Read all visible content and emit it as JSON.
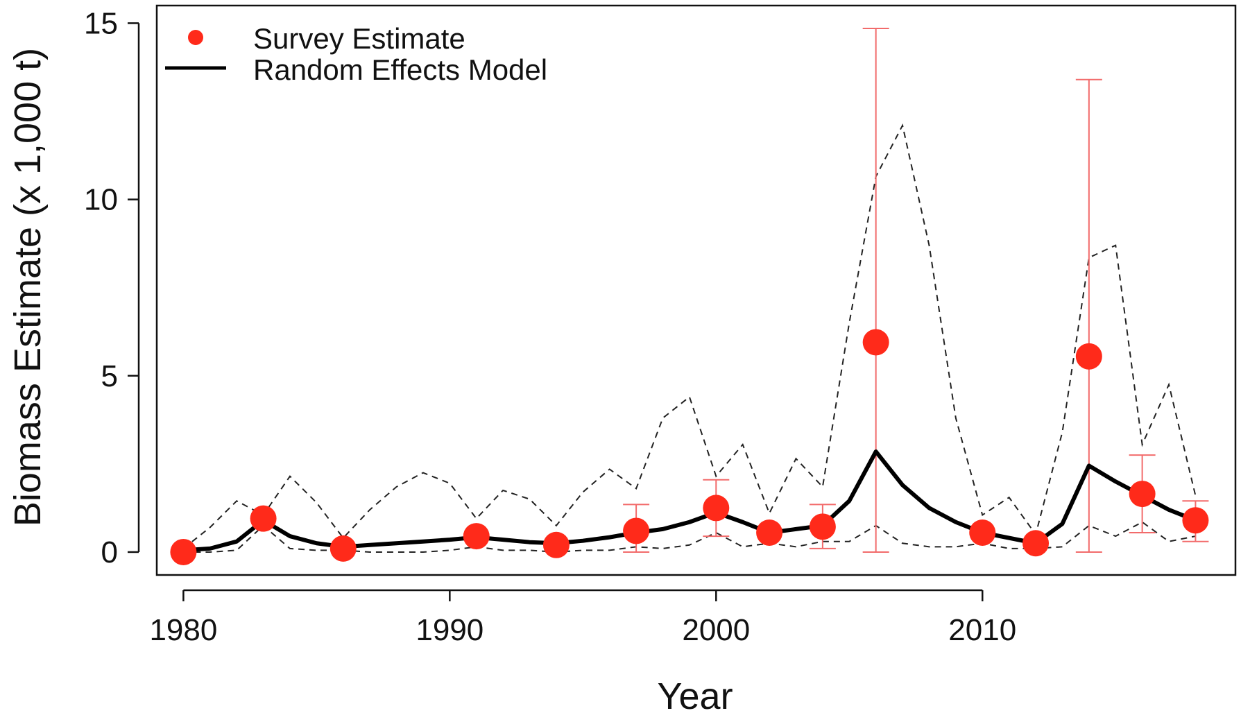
{
  "chart_data": {
    "type": "line",
    "title": "",
    "xlabel": "Year",
    "ylabel": "Biomass Estimate (x 1,000 t)",
    "xlim": [
      1979,
      2019.5
    ],
    "ylim": [
      -0.65,
      15.5
    ],
    "x_ticks": [
      1980,
      1990,
      2000,
      2010
    ],
    "y_ticks": [
      0,
      5,
      10,
      15
    ],
    "grid": false,
    "legend": {
      "position": "top-left",
      "entries": [
        {
          "label": "Survey Estimate",
          "symbol": "point",
          "color": "#ff2a1a"
        },
        {
          "label": "Random Effects Model",
          "symbol": "line",
          "color": "#000000"
        }
      ]
    },
    "colors": {
      "survey": "#ff2a1a",
      "error_bar": "#f26b6b",
      "model": "#000000",
      "interval": "#222222",
      "axis": "#111111"
    },
    "series": [
      {
        "name": "Survey Estimate",
        "kind": "points_with_error_bars",
        "points": [
          {
            "x": 1980,
            "y": 0.0,
            "lower": 0.0,
            "upper": 0.0
          },
          {
            "x": 1983,
            "y": 0.95,
            "lower": 0.95,
            "upper": 0.95
          },
          {
            "x": 1986,
            "y": 0.1,
            "lower": 0.1,
            "upper": 0.1
          },
          {
            "x": 1991,
            "y": 0.45,
            "lower": 0.45,
            "upper": 0.45
          },
          {
            "x": 1994,
            "y": 0.2,
            "lower": 0.2,
            "upper": 0.2
          },
          {
            "x": 1997,
            "y": 0.6,
            "lower": 0.0,
            "upper": 1.35
          },
          {
            "x": 2000,
            "y": 1.25,
            "lower": 0.45,
            "upper": 2.05
          },
          {
            "x": 2002,
            "y": 0.55,
            "lower": 0.55,
            "upper": 0.55
          },
          {
            "x": 2004,
            "y": 0.72,
            "lower": 0.1,
            "upper": 1.35
          },
          {
            "x": 2006,
            "y": 5.95,
            "lower": 0.0,
            "upper": 14.85
          },
          {
            "x": 2010,
            "y": 0.55,
            "lower": 0.55,
            "upper": 0.55
          },
          {
            "x": 2012,
            "y": 0.25,
            "lower": 0.25,
            "upper": 0.25
          },
          {
            "x": 2014,
            "y": 5.55,
            "lower": 0.0,
            "upper": 13.4
          },
          {
            "x": 2016,
            "y": 1.65,
            "lower": 0.55,
            "upper": 2.75
          },
          {
            "x": 2018,
            "y": 0.9,
            "lower": 0.3,
            "upper": 1.45
          }
        ]
      },
      {
        "name": "Random Effects Model",
        "kind": "line",
        "x": [
          1980,
          1981,
          1982,
          1983,
          1984,
          1985,
          1986,
          1987,
          1988,
          1989,
          1990,
          1991,
          1992,
          1993,
          1994,
          1995,
          1996,
          1997,
          1998,
          1999,
          2000,
          2001,
          2002,
          2003,
          2004,
          2005,
          2006,
          2007,
          2008,
          2009,
          2010,
          2011,
          2012,
          2013,
          2014,
          2015,
          2016,
          2017,
          2018
        ],
        "y": [
          0.05,
          0.1,
          0.3,
          0.9,
          0.45,
          0.25,
          0.15,
          0.2,
          0.25,
          0.3,
          0.35,
          0.42,
          0.35,
          0.28,
          0.25,
          0.32,
          0.42,
          0.55,
          0.65,
          0.85,
          1.12,
          0.85,
          0.55,
          0.65,
          0.75,
          1.45,
          2.85,
          1.9,
          1.25,
          0.85,
          0.55,
          0.4,
          0.25,
          0.8,
          2.45,
          2.0,
          1.6,
          1.2,
          0.9
        ]
      },
      {
        "kind": "interval_upper",
        "x": [
          1980,
          1981,
          1982,
          1983,
          1984,
          1985,
          1986,
          1987,
          1988,
          1989,
          1990,
          1991,
          1992,
          1993,
          1994,
          1995,
          1996,
          1997,
          1998,
          1999,
          2000,
          2001,
          2002,
          2003,
          2004,
          2005,
          2006,
          2007,
          2008,
          2009,
          2010,
          2011,
          2012,
          2013,
          2014,
          2015,
          2016,
          2017,
          2018
        ],
        "y": [
          0.1,
          0.7,
          1.45,
          1.05,
          2.15,
          1.4,
          0.4,
          1.2,
          1.85,
          2.25,
          1.95,
          0.95,
          1.75,
          1.5,
          0.75,
          1.7,
          2.35,
          1.8,
          3.8,
          4.4,
          2.15,
          3.05,
          1.1,
          2.65,
          1.85,
          6.5,
          10.65,
          12.1,
          8.7,
          3.8,
          1.05,
          1.55,
          0.5,
          3.4,
          8.35,
          8.7,
          3.05,
          4.75,
          1.6
        ]
      },
      {
        "kind": "interval_lower",
        "x": [
          1980,
          1981,
          1982,
          1983,
          1984,
          1985,
          1986,
          1987,
          1988,
          1989,
          1990,
          1991,
          1992,
          1993,
          1994,
          1995,
          1996,
          1997,
          1998,
          1999,
          2000,
          2001,
          2002,
          2003,
          2004,
          2005,
          2006,
          2007,
          2008,
          2009,
          2010,
          2011,
          2012,
          2013,
          2014,
          2015,
          2016,
          2017,
          2018
        ],
        "y": [
          0.0,
          0.0,
          0.05,
          0.75,
          0.1,
          0.05,
          0.05,
          0.0,
          0.0,
          0.0,
          0.05,
          0.15,
          0.05,
          0.05,
          0.0,
          0.05,
          0.05,
          0.15,
          0.1,
          0.2,
          0.55,
          0.15,
          0.25,
          0.15,
          0.3,
          0.3,
          0.75,
          0.25,
          0.15,
          0.15,
          0.25,
          0.1,
          0.1,
          0.15,
          0.75,
          0.45,
          0.85,
          0.3,
          0.45
        ]
      }
    ]
  }
}
